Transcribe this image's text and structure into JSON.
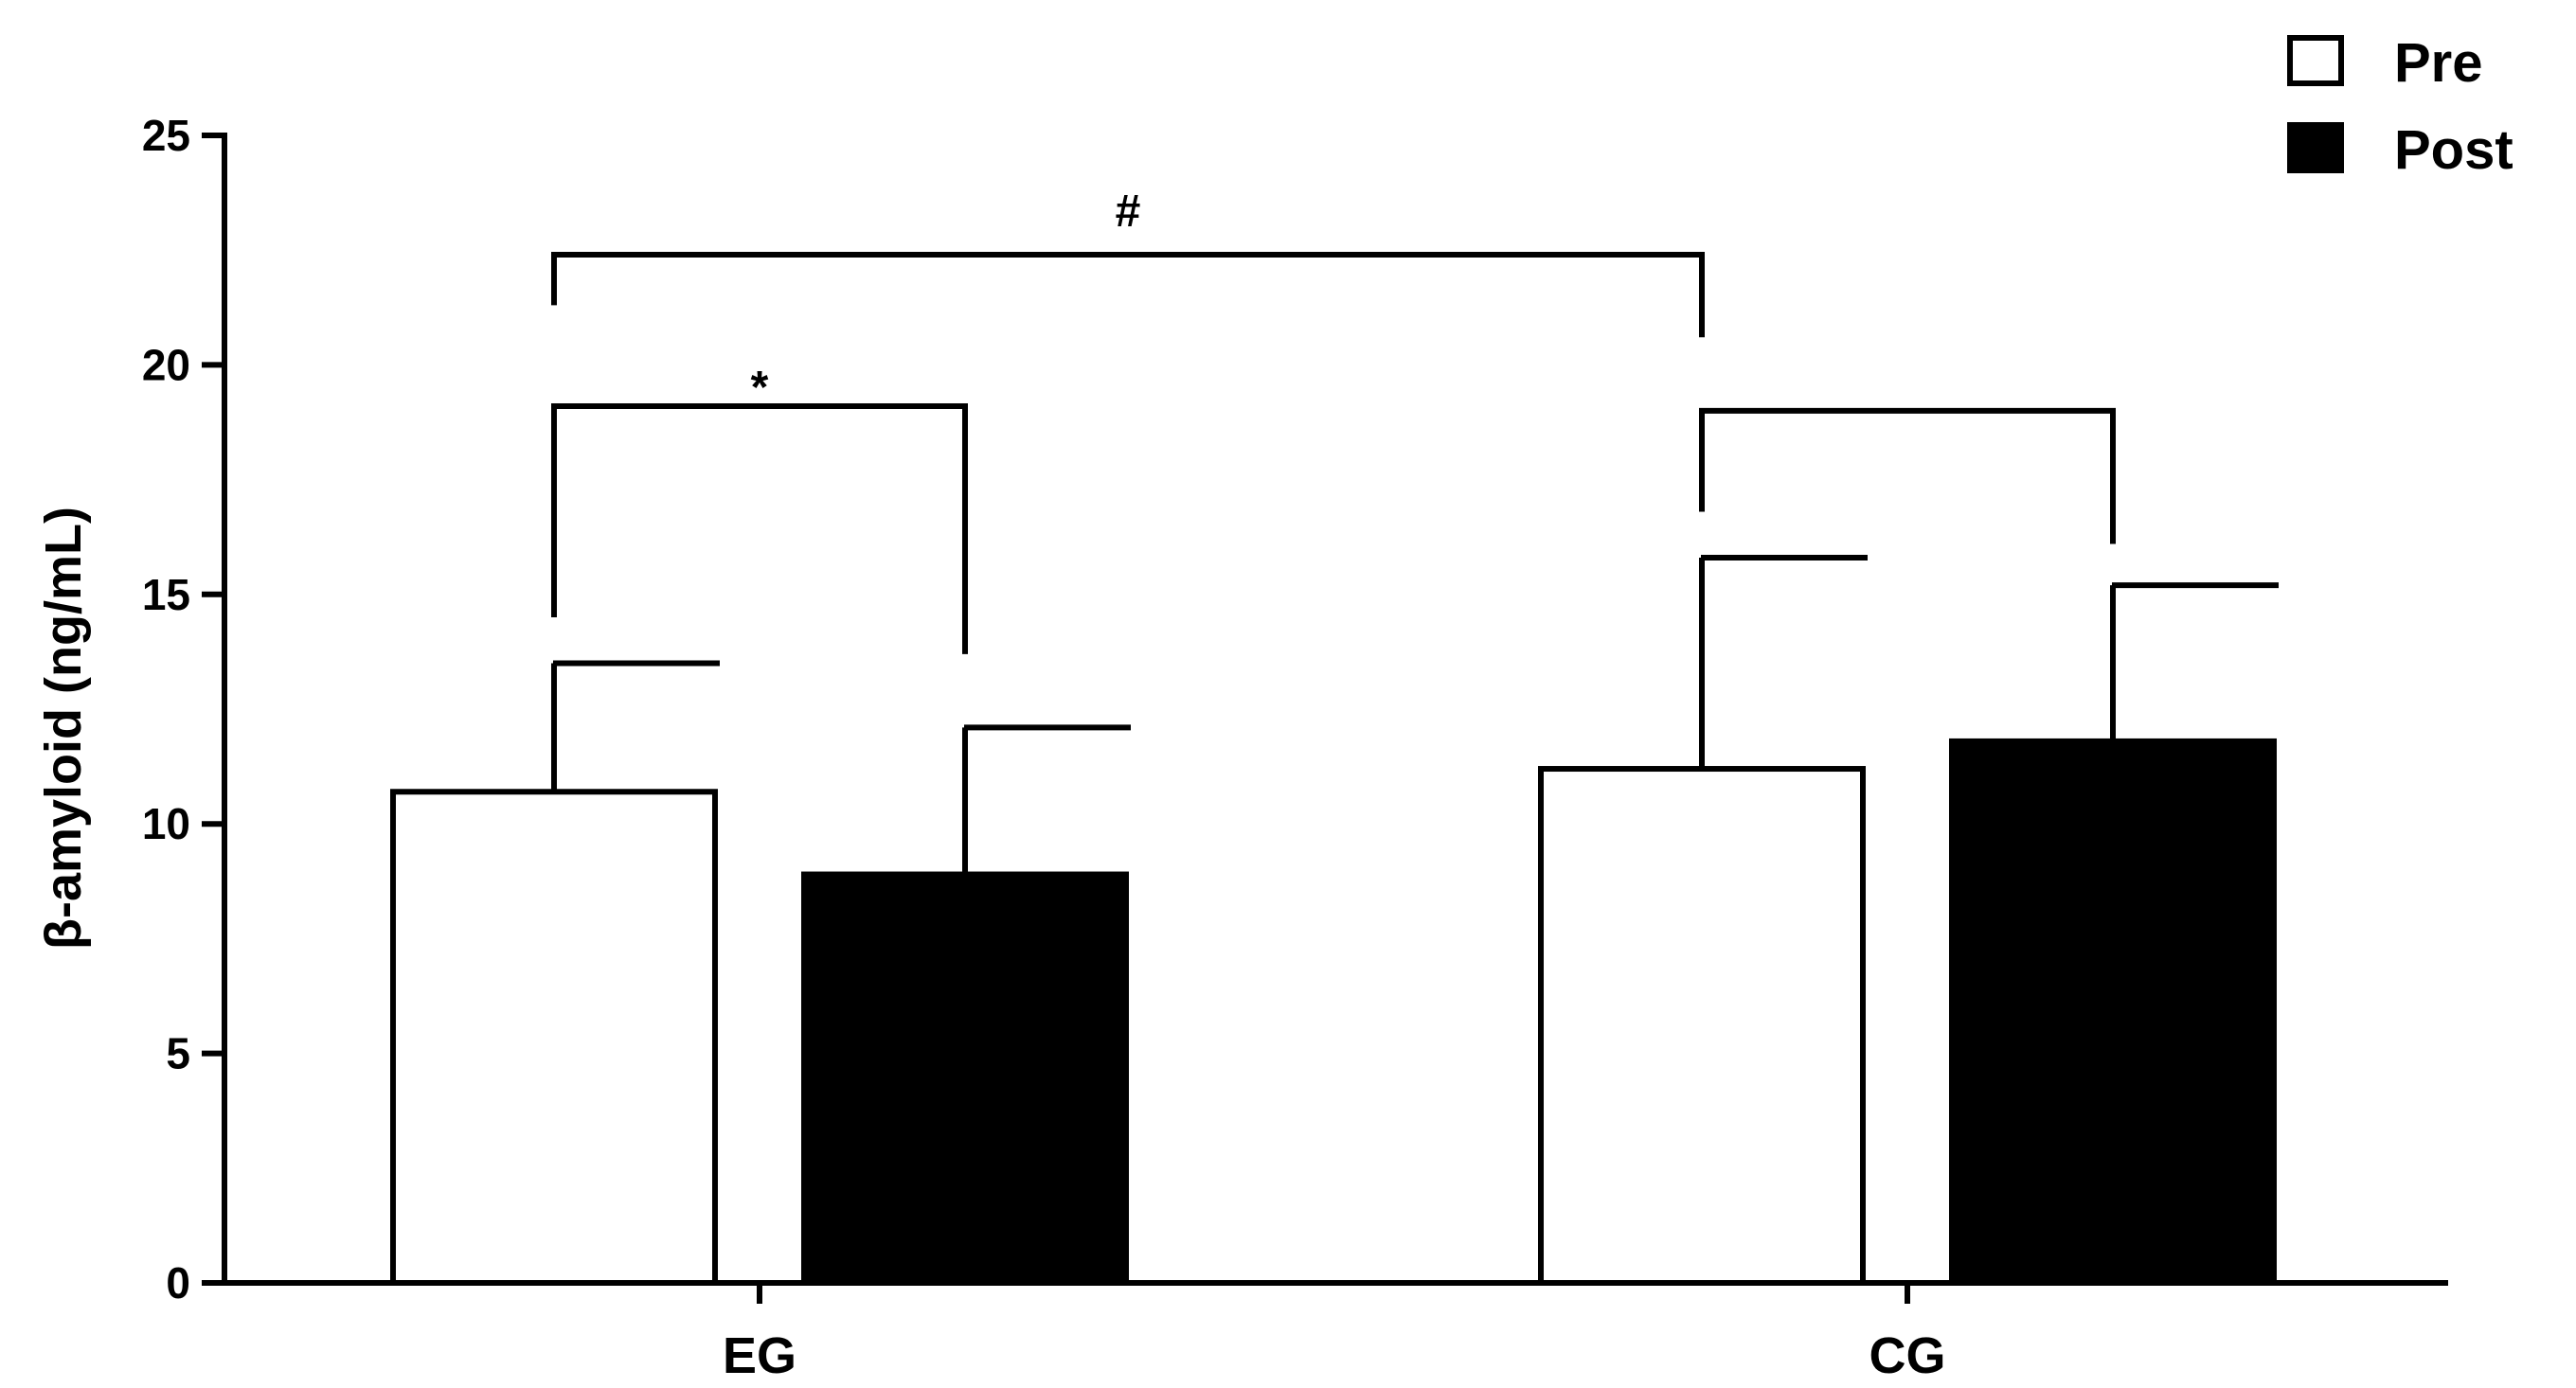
{
  "chart_data": {
    "type": "bar",
    "title": "",
    "xlabel": "",
    "ylabel": "β-amyloid (ng/mL)",
    "ylim": [
      0,
      25
    ],
    "yticks": [
      0,
      5,
      10,
      15,
      20,
      25
    ],
    "categories": [
      "EG",
      "CG"
    ],
    "series": [
      {
        "name": "Pre",
        "values": [
          10.7,
          11.2
        ],
        "errors": [
          2.8,
          4.6
        ],
        "color": "#ffffff"
      },
      {
        "name": "Post",
        "values": [
          8.9,
          11.8
        ],
        "errors": [
          3.2,
          3.4
        ],
        "color": "#000000"
      }
    ],
    "legend": {
      "position": "top-right"
    },
    "grid": false,
    "annotations": [
      {
        "type": "bracket",
        "label": "*",
        "from": {
          "category": 0,
          "series": 0
        },
        "to": {
          "category": 0,
          "series": 1
        },
        "level": 19.1,
        "left_end": 14.5,
        "right_end": 13.7
      },
      {
        "type": "bracket",
        "label": "",
        "from": {
          "category": 1,
          "series": 0
        },
        "to": {
          "category": 1,
          "series": 1
        },
        "level": 19.0,
        "left_end": 16.8,
        "right_end": 16.1
      },
      {
        "type": "bracket",
        "label": "#",
        "from": {
          "category": 0,
          "series": 0,
          "offset": 0.5
        },
        "to": {
          "category": 1,
          "series": 0,
          "offset": 0.5
        },
        "level": 22.4,
        "left_end": 21.3,
        "right_end": 20.6
      }
    ]
  }
}
